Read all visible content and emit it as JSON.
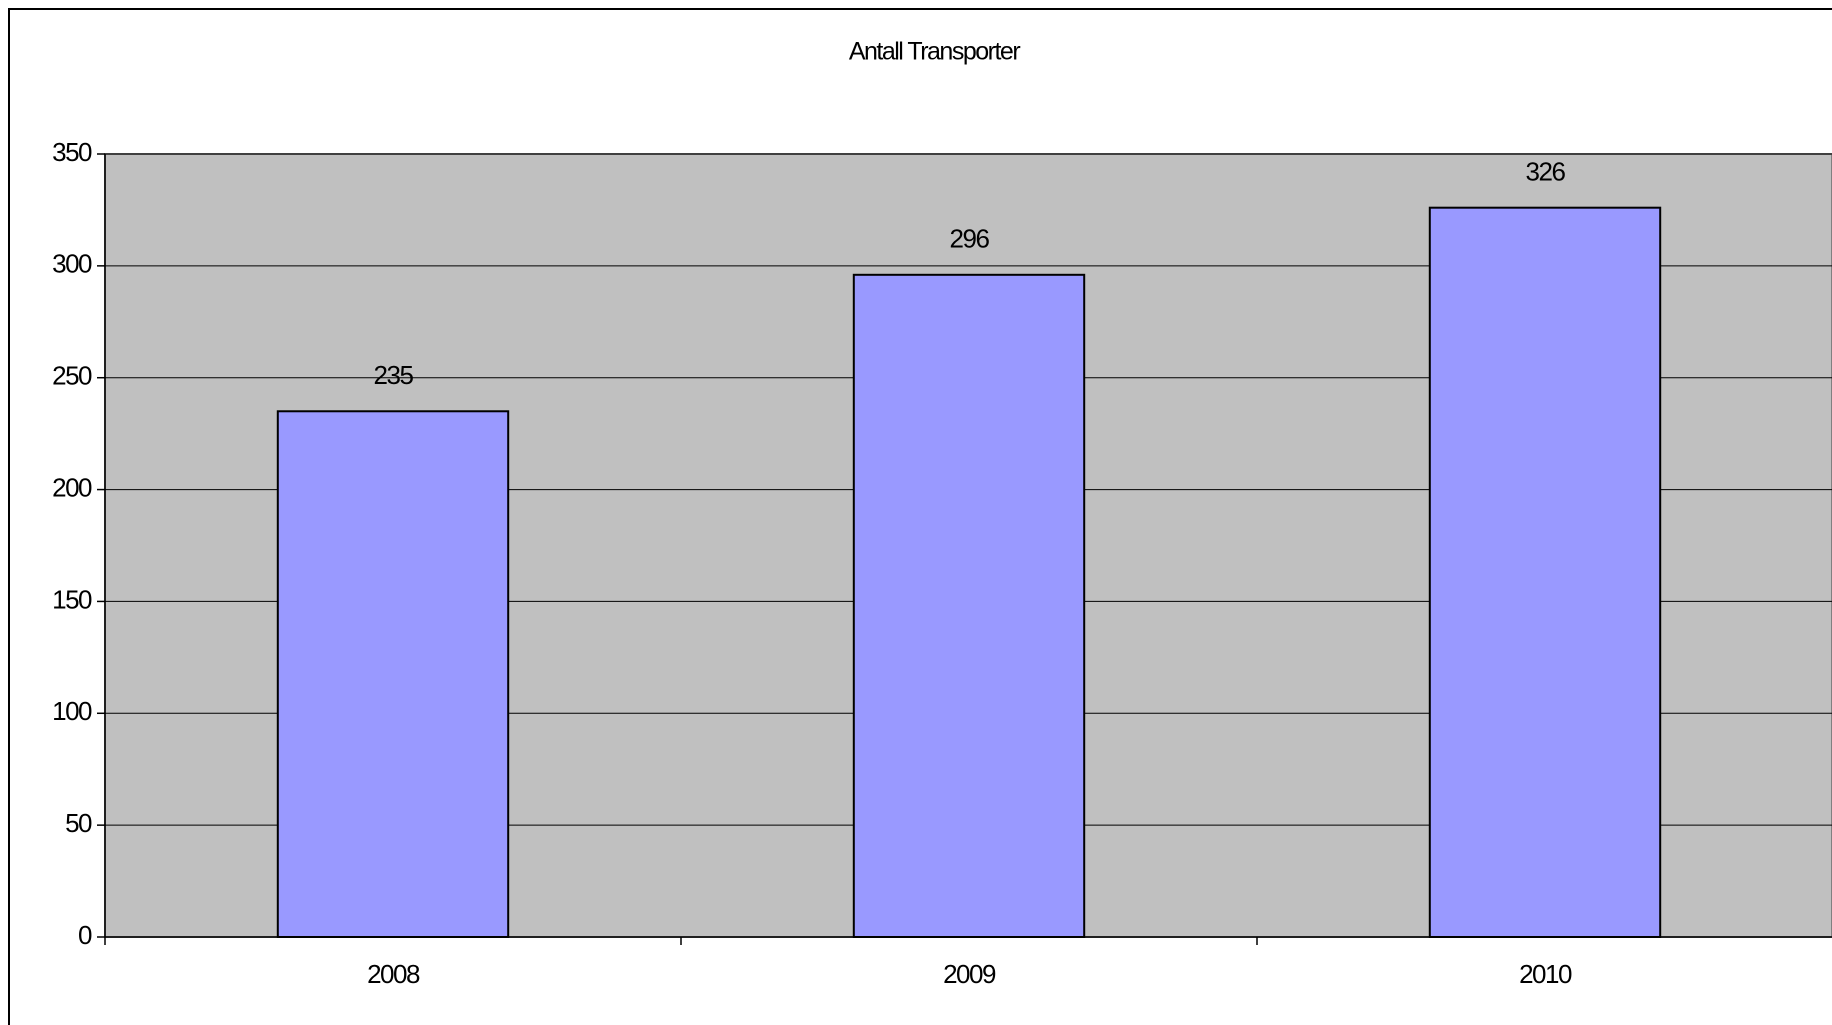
{
  "chart_data": {
    "type": "bar",
    "title": "Antall Transporter",
    "categories": [
      "2008",
      "2009",
      "2010"
    ],
    "values": [
      235,
      296,
      326
    ],
    "color": "#9999ff",
    "ylim": [
      0,
      350
    ],
    "yticks": [
      0,
      50,
      100,
      150,
      200,
      250,
      300,
      350
    ],
    "grid": true
  }
}
